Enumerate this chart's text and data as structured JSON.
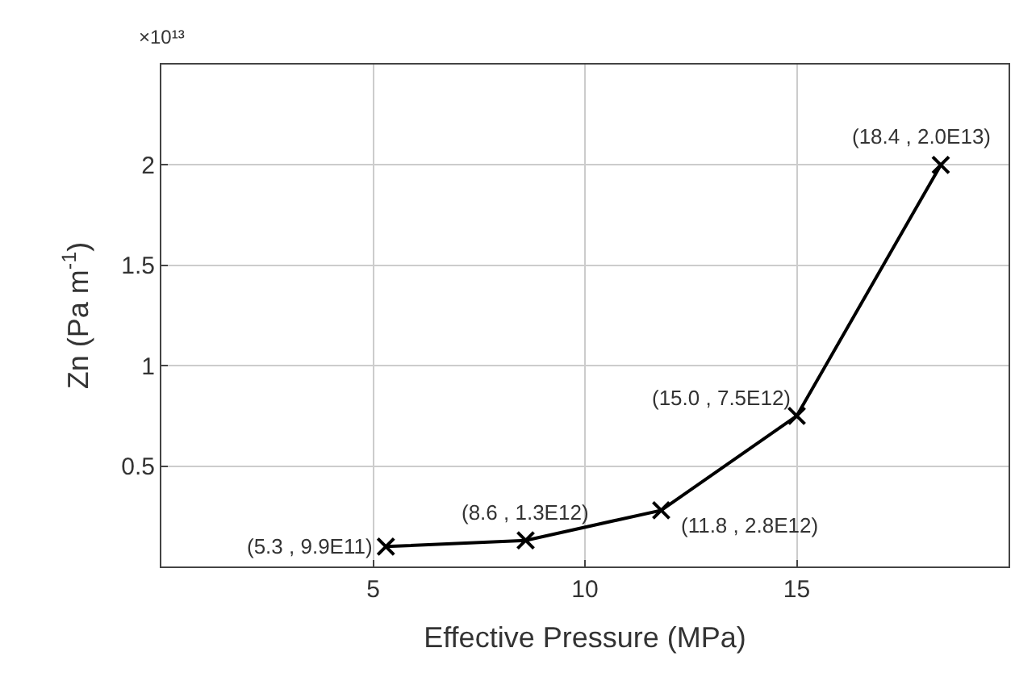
{
  "chart_data": {
    "type": "line",
    "xlabel": "Effective Pressure (MPa)",
    "ylabel": "Zn (Pa m$^{-1}$)",
    "x": [
      5.3,
      8.6,
      11.8,
      15.0,
      18.4
    ],
    "series": [
      {
        "color": "#000000",
        "values": [
          0.099,
          0.13,
          0.28,
          0.75,
          2.0
        ]
      }
    ],
    "xlim": [
      0,
      20
    ],
    "xticks": [
      5,
      10,
      15
    ],
    "ylim": [
      0,
      2.5
    ],
    "yticks": [
      0.5,
      1,
      1.5,
      2
    ],
    "grid": true,
    "marker": "cross",
    "line_style": "solid",
    "annotations": [
      "×10¹³",
      {
        "text": "(5.3 , 9.9E11)",
        "x": 5.3,
        "y": 0.099
      },
      {
        "text": "(8.6 , 1.3E12)",
        "x": 8.6,
        "y": 0.13
      },
      {
        "text": "(11.8 , 2.8E12)",
        "x": 11.8,
        "y": 0.28
      },
      {
        "text": "(15.0 , 7.5E12)",
        "x": 15.0,
        "y": 0.75
      },
      {
        "text": "(18.4 , 2.0E13)",
        "x": 18.4,
        "y": 2.0
      }
    ]
  }
}
